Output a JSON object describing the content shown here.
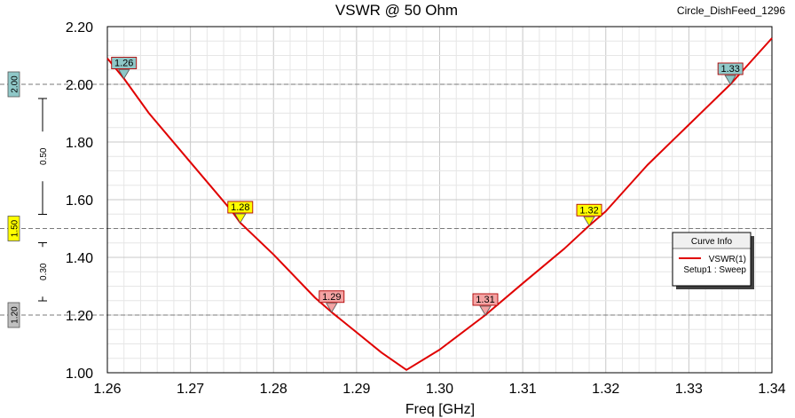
{
  "title": "VSWR @ 50 Ohm",
  "design_name": "Circle_DishFeed_1296",
  "chart_data": {
    "type": "line",
    "title": "VSWR @ 50 Ohm",
    "xlabel": "Freq [GHz]",
    "ylabel": "",
    "xlim": [
      1.26,
      1.34
    ],
    "ylim": [
      1.0,
      2.2
    ],
    "x_ticks": [
      "1.26",
      "1.27",
      "1.28",
      "1.29",
      "1.30",
      "1.31",
      "1.32",
      "1.33",
      "1.34"
    ],
    "y_ticks": [
      "1.00",
      "1.20",
      "1.40",
      "1.60",
      "1.80",
      "2.00",
      "2.20"
    ],
    "grid": true,
    "series": [
      {
        "name": "VSWR(1)",
        "color": "#e00000",
        "x": [
          1.26,
          1.262,
          1.265,
          1.27,
          1.275,
          1.276,
          1.28,
          1.285,
          1.287,
          1.29,
          1.293,
          1.296,
          1.3,
          1.3055,
          1.31,
          1.315,
          1.318,
          1.32,
          1.325,
          1.33,
          1.335,
          1.34
        ],
        "y": [
          2.09,
          2.02,
          1.9,
          1.73,
          1.56,
          1.52,
          1.41,
          1.26,
          1.21,
          1.14,
          1.07,
          1.01,
          1.08,
          1.2,
          1.31,
          1.43,
          1.51,
          1.56,
          1.72,
          1.86,
          2.0,
          2.16
        ]
      }
    ],
    "markers": [
      {
        "label": "1.26",
        "x": 1.262,
        "y": 2.02,
        "color": "#8fc8c8"
      },
      {
        "label": "1.28",
        "x": 1.276,
        "y": 1.52,
        "color": "#ffff00"
      },
      {
        "label": "1.29",
        "x": 1.287,
        "y": 1.21,
        "color": "#f4a3a3"
      },
      {
        "label": "1.31",
        "x": 1.3055,
        "y": 1.2,
        "color": "#f4a3a3"
      },
      {
        "label": "1.32",
        "x": 1.318,
        "y": 1.51,
        "color": "#ffff00"
      },
      {
        "label": "1.33",
        "x": 1.335,
        "y": 2.0,
        "color": "#8fc8c8"
      }
    ],
    "reference_lines": [
      {
        "y": 2.0,
        "label": "2.00",
        "color": "#8fc8c8"
      },
      {
        "y": 1.5,
        "label": "1.50",
        "color": "#ffff00"
      },
      {
        "y": 1.2,
        "label": "1.20",
        "color": "#c0c0c0"
      }
    ],
    "deltas": [
      {
        "label": "0.50",
        "from": 1.5,
        "to": 2.0
      },
      {
        "label": "0.30",
        "from": 1.2,
        "to": 1.5
      }
    ],
    "legend": {
      "title": "Curve Info",
      "entry": "VSWR(1)",
      "sub": "Setup1 : Sweep",
      "position": "right"
    }
  }
}
